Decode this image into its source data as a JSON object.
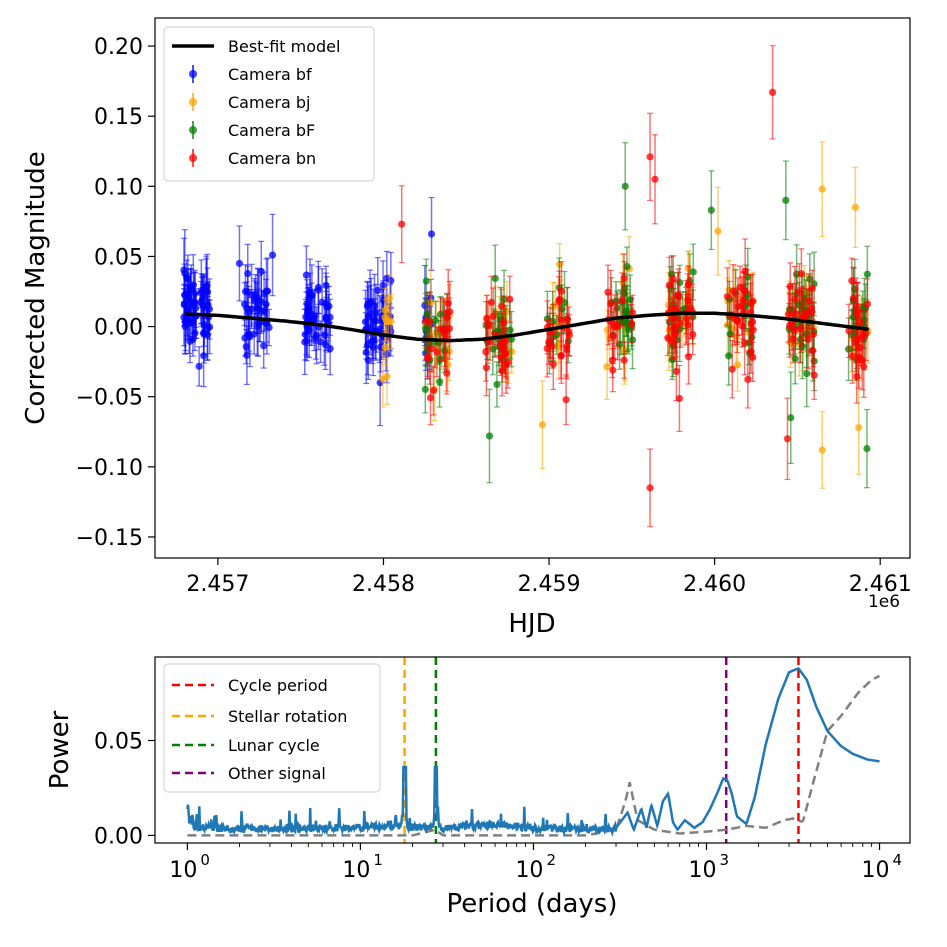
{
  "chart_data": [
    {
      "type": "scatter",
      "xlabel": "HJD",
      "ylabel": "Corrected Magnitude",
      "x_offset_label": "1e6",
      "xlim": [
        2456620,
        2461180
      ],
      "ylim": [
        -0.165,
        0.22
      ],
      "xticks": [
        2456999.9,
        2458000,
        2459000,
        2460000,
        2461000
      ],
      "xtick_labels": [
        "2.457",
        "2.458",
        "2.459",
        "2.460",
        "2.461"
      ],
      "yticks": [
        -0.15,
        -0.1,
        -0.05,
        0.0,
        0.05,
        0.1,
        0.15,
        0.2
      ],
      "ytick_labels": [
        "−0.15",
        "−0.10",
        "−0.05",
        "0.00",
        "0.05",
        "0.10",
        "0.15",
        "0.20"
      ],
      "legend_position": "top-left",
      "model": {
        "name": "Best-fit model",
        "color": "#000000",
        "x": [
          2456800,
          2457000,
          2457200,
          2457400,
          2457600,
          2457800,
          2458000,
          2458200,
          2458400,
          2458600,
          2458800,
          2459000,
          2459200,
          2459400,
          2459600,
          2459800,
          2460000,
          2460200,
          2460400,
          2460600,
          2460800,
          2460930
        ],
        "y": [
          0.009,
          0.008,
          0.006,
          0.004,
          0.0015,
          -0.002,
          -0.006,
          -0.009,
          -0.01,
          -0.009,
          -0.006,
          -0.002,
          0.002,
          0.006,
          0.008,
          0.0095,
          0.0095,
          0.008,
          0.006,
          0.003,
          0.0,
          -0.002
        ]
      },
      "series": [
        {
          "name": "Camera bf",
          "color": "#0000ff",
          "x_range": [
            2456790,
            2458290
          ],
          "y_spread": 0.022,
          "highlights": [
            [
              2456800,
              0.038
            ],
            [
              2457130,
              0.045
            ],
            [
              2457330,
              0.051
            ],
            [
              2458290,
              0.066
            ],
            [
              2458250,
              0.015
            ],
            [
              2457980,
              -0.04
            ]
          ]
        },
        {
          "name": "Camera bj",
          "color": "#ffa500",
          "x_range": [
            2457990,
            2460930
          ],
          "y_spread": 0.026,
          "highlights": [
            [
              2460650,
              0.098
            ],
            [
              2460850,
              0.085
            ],
            [
              2460020,
              0.068
            ],
            [
              2460650,
              -0.088
            ],
            [
              2460870,
              -0.072
            ],
            [
              2458960,
              -0.07
            ]
          ]
        },
        {
          "name": "Camera bF",
          "color": "#008000",
          "x_range": [
            2458230,
            2460930
          ],
          "y_spread": 0.026,
          "highlights": [
            [
              2459460,
              0.1
            ],
            [
              2460430,
              0.09
            ],
            [
              2459980,
              0.083
            ],
            [
              2458640,
              -0.078
            ],
            [
              2460460,
              -0.065
            ],
            [
              2460920,
              -0.087
            ]
          ]
        },
        {
          "name": "Camera bn",
          "color": "#ff0000",
          "x_range": [
            2458060,
            2460930
          ],
          "y_spread": 0.027,
          "highlights": [
            [
              2460350,
              0.167
            ],
            [
              2459610,
              0.121
            ],
            [
              2459640,
              0.105
            ],
            [
              2458110,
              0.073
            ],
            [
              2459610,
              -0.115
            ],
            [
              2460440,
              -0.08
            ]
          ]
        }
      ]
    },
    {
      "type": "line",
      "xscale": "log",
      "xlabel": "Period (days)",
      "ylabel": "Power",
      "xlim": [
        0.65,
        15000
      ],
      "ylim": [
        -0.004,
        0.094
      ],
      "xticks": [
        1,
        10,
        100,
        1000,
        10000
      ],
      "xtick_base": "10",
      "xtick_exponents": [
        "0",
        "1",
        "2",
        "3",
        "4"
      ],
      "yticks": [
        0.0,
        0.05
      ],
      "ytick_labels": [
        "0.00",
        "0.05"
      ],
      "legend_position": "top-left",
      "periodogram": {
        "color": "#1f77b4",
        "x": [
          1,
          1.02,
          1.05,
          1.1,
          2,
          5,
          10,
          17,
          17.5,
          18,
          18.6,
          19,
          25,
          26.5,
          27.3,
          28,
          30,
          40,
          60,
          100,
          200,
          300,
          350,
          380,
          420,
          450,
          480,
          520,
          560,
          600,
          640,
          680,
          750,
          850,
          950,
          1050,
          1150,
          1250,
          1320,
          1400,
          1500,
          1700,
          1900,
          2200,
          2600,
          3000,
          3400,
          3800,
          4300,
          5000,
          6000,
          7000,
          8500,
          10000
        ],
        "y": [
          0.021,
          0.012,
          0.006,
          0.005,
          0.004,
          0.004,
          0.006,
          0.008,
          0.015,
          0.038,
          0.012,
          0.006,
          0.005,
          0.012,
          0.038,
          0.01,
          0.004,
          0.007,
          0.009,
          0.005,
          0.003,
          0.004,
          0.012,
          0.003,
          0.014,
          0.004,
          0.016,
          0.005,
          0.018,
          0.022,
          0.007,
          0.003,
          0.008,
          0.004,
          0.007,
          0.014,
          0.022,
          0.03,
          0.029,
          0.022,
          0.01,
          0.006,
          0.02,
          0.048,
          0.072,
          0.086,
          0.088,
          0.082,
          0.068,
          0.055,
          0.047,
          0.043,
          0.04,
          0.039
        ]
      },
      "window": {
        "color": "#808080",
        "x": [
          1,
          5,
          20,
          27,
          30,
          100,
          200,
          300,
          340,
          360,
          375,
          400,
          500,
          700,
          1000,
          1300,
          1700,
          2200,
          2800,
          3200,
          3600,
          4200,
          5000,
          6000,
          7500,
          9000,
          10000
        ],
        "y": [
          0.0,
          0.0,
          0.0,
          0.003,
          0.0,
          0.0,
          0.0,
          0.003,
          0.018,
          0.028,
          0.02,
          0.008,
          0.003,
          0.001,
          0.002,
          0.003,
          0.005,
          0.004,
          0.008,
          0.009,
          0.007,
          0.03,
          0.055,
          0.063,
          0.075,
          0.082,
          0.084
        ]
      },
      "reference_lines": [
        {
          "name": "Cycle period",
          "x": 3400,
          "color": "#ff0000"
        },
        {
          "name": "Stellar rotation",
          "x": 18,
          "color": "#ffa500"
        },
        {
          "name": "Lunar cycle",
          "x": 27.3,
          "color": "#008000"
        },
        {
          "name": "Other signal",
          "x": 1300,
          "color": "#800080"
        }
      ]
    }
  ]
}
